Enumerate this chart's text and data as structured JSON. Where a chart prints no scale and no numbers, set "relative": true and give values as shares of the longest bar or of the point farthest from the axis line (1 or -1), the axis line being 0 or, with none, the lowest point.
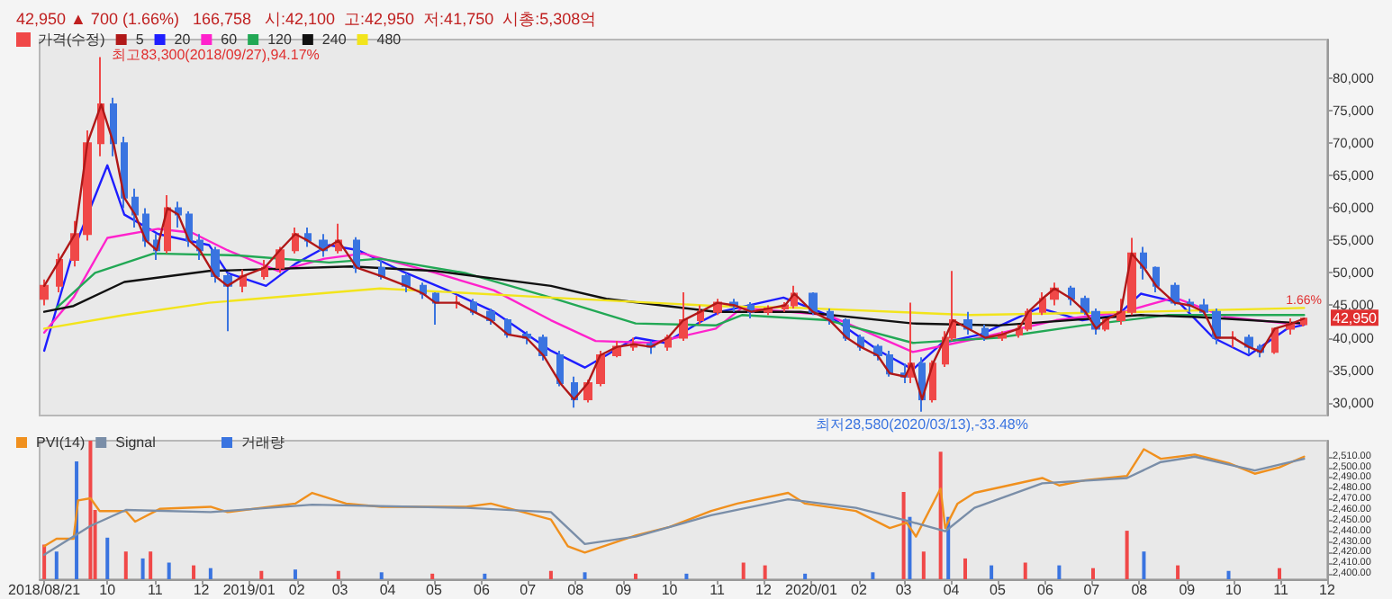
{
  "chart_data": [
    {
      "type": "candlestick",
      "title": "42,950 ▲ 700 (1.66%)   166,758   시:42,100  고:42,950  저:41,750  시총:5,308억",
      "series": [
        {
          "name": "가격(수정)",
          "color": "#f04848",
          "colors": [
            "#f04848",
            "#f04848",
            "#f04848",
            "#f04848",
            "#f04848",
            "#3a74e0",
            "#3a74e0",
            "#3a74e0",
            "#3a74e0",
            "#3a74e0",
            "#f04848",
            "#3a74e0",
            "#3a74e0",
            "#3a74e0",
            "#3a74e0",
            "#3a74e0",
            "#f04848",
            "#f04848",
            "#f04848",
            "#f04848",
            "#3a74e0",
            "#3a74e0",
            "#f04848",
            "#3a74e0",
            "#3a74e0",
            "#3a74e0",
            "#3a74e0",
            "#3a74e0",
            "#f04848",
            "#3a74e0",
            "#3a74e0",
            "#3a74e0",
            "#3a74e0",
            "#3a74e0",
            "#3a74e0",
            "#3a74e0",
            "#f04848",
            "#f04848",
            "#f04848",
            "#f04848",
            "#3a74e0",
            "#f04848",
            "#f04848",
            "#f04848",
            "#f04848",
            "#3a74e0",
            "#3a74e0",
            "#f04848",
            "#f04848",
            "#f04848",
            "#3a74e0",
            "#3a74e0",
            "#3a74e0",
            "#3a74e0",
            "#3a74e0",
            "#3a74e0",
            "#3a74e0",
            "#f04848",
            "#3a74e0",
            "#f04848",
            "#f04848",
            "#f04848",
            "#3a74e0",
            "#3a74e0",
            "#f04848",
            "#f04848",
            "#f04848",
            "#f04848",
            "#f04848",
            "#3a74e0",
            "#3a74e0",
            "#3a74e0",
            "#f04848",
            "#f04848",
            "#f04848",
            "#3a74e0",
            "#3a74e0",
            "#3a74e0",
            "#3a74e0",
            "#3a74e0",
            "#3a74e0",
            "#f04848",
            "#3a74e0",
            "#3a74e0",
            "#f04848",
            "#f04848",
            "#f04848"
          ],
          "x": [
            "2018-08-21",
            "2018-08-31",
            "2018-09-10",
            "2018-09-18",
            "2018-09-27",
            "2018-10-05",
            "2018-10-12",
            "2018-10-19",
            "2018-10-26",
            "2018-11-02",
            "2018-11-09",
            "2018-11-16",
            "2018-11-23",
            "2018-11-30",
            "2018-12-10",
            "2018-12-18",
            "2018-12-28",
            "2019-01-11",
            "2019-01-21",
            "2019-01-31",
            "2019-02-08",
            "2019-02-18",
            "2019-02-28",
            "2019-03-12",
            "2019-03-28",
            "2019-04-13",
            "2019-04-24",
            "2019-05-02",
            "2019-05-16",
            "2019-05-27",
            "2019-06-07",
            "2019-06-18",
            "2019-06-30",
            "2019-07-11",
            "2019-07-22",
            "2019-07-31",
            "2019-08-09",
            "2019-08-17",
            "2019-08-28",
            "2019-09-08",
            "2019-09-19",
            "2019-09-30",
            "2019-10-10",
            "2019-10-21",
            "2019-11-01",
            "2019-11-12",
            "2019-11-23",
            "2019-12-04",
            "2019-12-15",
            "2019-12-21",
            "2020-01-02",
            "2020-01-13",
            "2020-01-24",
            "2020-02-02",
            "2020-02-13",
            "2020-02-21",
            "2020-03-02",
            "2020-03-06",
            "2020-03-13",
            "2020-03-20",
            "2020-03-28",
            "2020-04-02",
            "2020-04-12",
            "2020-04-23",
            "2020-05-04",
            "2020-05-15",
            "2020-05-21",
            "2020-05-30",
            "2020-06-07",
            "2020-06-18",
            "2020-06-27",
            "2020-07-04",
            "2020-07-10",
            "2020-07-20",
            "2020-07-27",
            "2020-08-04",
            "2020-08-12",
            "2020-08-24",
            "2020-09-03",
            "2020-09-12",
            "2020-09-20",
            "2020-10-01",
            "2020-10-11",
            "2020-10-19",
            "2020-10-28",
            "2020-11-07",
            "2020-11-16"
          ],
          "ohlc": [
            [
              46000,
              49000,
              45000,
              48000
            ],
            [
              48000,
              53000,
              47000,
              52000
            ],
            [
              52000,
              58000,
              51000,
              56000
            ],
            [
              56000,
              72000,
              55000,
              70000
            ],
            [
              70000,
              83300,
              68000,
              76000
            ],
            [
              76000,
              77000,
              68000,
              70000
            ],
            [
              70000,
              71000,
              60000,
              61600
            ],
            [
              61600,
              63000,
              57000,
              59000
            ],
            [
              59000,
              60000,
              54000,
              55000
            ],
            [
              55000,
              56000,
              52000,
              53500
            ],
            [
              53500,
              62000,
              53000,
              60000
            ],
            [
              60000,
              61000,
              57000,
              59000
            ],
            [
              59000,
              59500,
              54000,
              55000
            ],
            [
              55000,
              56000,
              52000,
              53500
            ],
            [
              53500,
              54000,
              48500,
              49500
            ],
            [
              49500,
              50000,
              41000,
              48000
            ],
            [
              48000,
              50500,
              47000,
              49500
            ],
            [
              49500,
              52000,
              49000,
              50800
            ],
            [
              50800,
              54000,
              50000,
              53500
            ],
            [
              53500,
              57000,
              53000,
              56000
            ],
            [
              56000,
              57000,
              54000,
              55000
            ],
            [
              55000,
              56000,
              52500,
              53500
            ],
            [
              53500,
              57600,
              53000,
              55000
            ],
            [
              55000,
              55500,
              50000,
              50800
            ],
            [
              50800,
              52000,
              49000,
              49500
            ],
            [
              49500,
              50000,
              47000,
              48000
            ],
            [
              48000,
              48500,
              46000,
              46800
            ],
            [
              46800,
              47000,
              42000,
              45400
            ],
            [
              45400,
              46500,
              44500,
              45400
            ],
            [
              45400,
              46000,
              43500,
              44000
            ],
            [
              44000,
              44500,
              42000,
              42700
            ],
            [
              42700,
              43000,
              40000,
              40500
            ],
            [
              40500,
              41000,
              39000,
              40000
            ],
            [
              40000,
              40500,
              36500,
              37300
            ],
            [
              37300,
              38000,
              32500,
              33000
            ],
            [
              33000,
              34000,
              29200,
              30500
            ],
            [
              30500,
              33500,
              30000,
              33000
            ],
            [
              33000,
              38000,
              32500,
              37300
            ],
            [
              37300,
              39500,
              37000,
              38600
            ],
            [
              38600,
              40000,
              38000,
              39000
            ],
            [
              39000,
              39500,
              37500,
              38600
            ],
            [
              38600,
              40500,
              38000,
              40000
            ],
            [
              40000,
              47000,
              39500,
              42700
            ],
            [
              42700,
              45000,
              42000,
              44000
            ],
            [
              44000,
              46000,
              43500,
              45400
            ],
            [
              45400,
              46000,
              44000,
              45000
            ],
            [
              45000,
              45500,
              43000,
              44000
            ],
            [
              44000,
              45000,
              43500,
              44500
            ],
            [
              44500,
              45500,
              44000,
              45000
            ],
            [
              45000,
              48000,
              44500,
              46800
            ],
            [
              46800,
              47000,
              43500,
              44000
            ],
            [
              44000,
              44500,
              42000,
              42700
            ],
            [
              42700,
              43000,
              39500,
              40000
            ],
            [
              40000,
              40500,
              38000,
              38600
            ],
            [
              38600,
              39000,
              36500,
              37300
            ],
            [
              37300,
              38000,
              34000,
              34500
            ],
            [
              34500,
              36000,
              33000,
              34000
            ],
            [
              34000,
              45400,
              33000,
              36000
            ],
            [
              36000,
              37000,
              28580,
              30500
            ],
            [
              30500,
              36500,
              30000,
              36000
            ],
            [
              36000,
              41000,
              35500,
              40000
            ],
            [
              40000,
              50300,
              39500,
              42700
            ],
            [
              42700,
              44000,
              40500,
              41400
            ],
            [
              41400,
              42000,
              39500,
              40000
            ],
            [
              40000,
              41000,
              39500,
              40500
            ],
            [
              40500,
              42000,
              40000,
              41400
            ],
            [
              41400,
              44500,
              41000,
              44000
            ],
            [
              44000,
              47000,
              43500,
              46000
            ],
            [
              46000,
              48500,
              45000,
              47600
            ],
            [
              47600,
              48000,
              45000,
              46000
            ],
            [
              46000,
              46500,
              43500,
              44000
            ],
            [
              44000,
              44500,
              40500,
              41400
            ],
            [
              41400,
              43000,
              41000,
              42700
            ],
            [
              42700,
              46000,
              42000,
              44000
            ],
            [
              44000,
              55400,
              43500,
              53000
            ],
            [
              53000,
              54000,
              49000,
              50800
            ],
            [
              50800,
              51000,
              47000,
              48000
            ],
            [
              48000,
              48500,
              45000,
              45400
            ],
            [
              45400,
              46000,
              44000,
              45000
            ],
            [
              45000,
              46000,
              43500,
              44000
            ],
            [
              44000,
              44500,
              39000,
              40000
            ],
            [
              40000,
              41000,
              38500,
              40000
            ],
            [
              40000,
              40500,
              37500,
              38600
            ],
            [
              38600,
              39000,
              37000,
              37800
            ],
            [
              37800,
              41500,
              37500,
              41400
            ],
            [
              41400,
              43000,
              40500,
              42100
            ],
            [
              42100,
              42950,
              41750,
              42950
            ]
          ]
        },
        {
          "name": "5",
          "type": "line",
          "color": "#b01818",
          "x": [
            "2018-08-21",
            "2018-08-31",
            "2018-09-10",
            "2018-09-18",
            "2018-09-27",
            "2018-10-05",
            "2018-10-12",
            "2018-10-19",
            "2018-10-26",
            "2018-11-02",
            "2018-11-09",
            "2018-11-16",
            "2018-11-23",
            "2018-11-30",
            "2018-12-10",
            "2018-12-18",
            "2018-12-28",
            "2019-01-11",
            "2019-01-21",
            "2019-01-31",
            "2019-02-08",
            "2019-02-18",
            "2019-02-28",
            "2019-03-12",
            "2019-03-28",
            "2019-04-13",
            "2019-04-24",
            "2019-05-02",
            "2019-05-16",
            "2019-05-27",
            "2019-06-07",
            "2019-06-18",
            "2019-06-30",
            "2019-07-11",
            "2019-07-22",
            "2019-07-31",
            "2019-08-09",
            "2019-08-17",
            "2019-08-28",
            "2019-09-08",
            "2019-09-19",
            "2019-09-30",
            "2019-10-10",
            "2019-10-21",
            "2019-11-01",
            "2019-11-12",
            "2019-11-23",
            "2019-12-04",
            "2019-12-15",
            "2019-12-21",
            "2020-01-02",
            "2020-01-13",
            "2020-01-24",
            "2020-02-02",
            "2020-02-13",
            "2020-02-21",
            "2020-03-02",
            "2020-03-06",
            "2020-03-13",
            "2020-03-20",
            "2020-03-28",
            "2020-04-02",
            "2020-04-12",
            "2020-04-23",
            "2020-05-04",
            "2020-05-15",
            "2020-05-21",
            "2020-05-30",
            "2020-06-07",
            "2020-06-18",
            "2020-06-27",
            "2020-07-04",
            "2020-07-10",
            "2020-07-20",
            "2020-07-27",
            "2020-08-04",
            "2020-08-12",
            "2020-08-24",
            "2020-09-03",
            "2020-09-12",
            "2020-09-20",
            "2020-10-01",
            "2020-10-11",
            "2020-10-19",
            "2020-10-28",
            "2020-11-07",
            "2020-11-16"
          ],
          "values": [
            48000,
            52000,
            56000,
            70000,
            76000,
            70000,
            61600,
            59000,
            55000,
            53500,
            60000,
            59000,
            55000,
            53500,
            49500,
            48000,
            49500,
            50800,
            53500,
            56000,
            55000,
            53500,
            55000,
            50800,
            49500,
            48000,
            46800,
            45400,
            45400,
            44000,
            42700,
            40500,
            40000,
            37300,
            33000,
            30500,
            33000,
            37300,
            38600,
            39000,
            38600,
            40000,
            42700,
            44000,
            45400,
            45000,
            44000,
            44500,
            45000,
            46800,
            44000,
            42700,
            40000,
            38600,
            37300,
            34500,
            34000,
            36000,
            30500,
            36000,
            40000,
            42700,
            41400,
            40000,
            40500,
            41400,
            44000,
            46000,
            47600,
            46000,
            44000,
            41400,
            42700,
            44000,
            53000,
            50800,
            48000,
            45400,
            45000,
            44000,
            40000,
            40000,
            38600,
            37800,
            41400,
            42100,
            42950
          ]
        },
        {
          "name": "20",
          "type": "line",
          "color": "#1e1eff",
          "x": [
            "2018-08-21",
            "2018-09-09",
            "2018-10-01",
            "2018-10-12",
            "2018-11-03",
            "2018-12-06",
            "2018-12-18",
            "2019-01-12",
            "2019-01-31",
            "2019-02-22",
            "2019-03-13",
            "2019-04-10",
            "2019-05-10",
            "2019-06-09",
            "2019-07-16",
            "2019-08-07",
            "2019-08-21",
            "2019-09-09",
            "2019-09-28",
            "2019-10-23",
            "2019-11-03",
            "2019-12-14",
            "2020-01-12",
            "2020-02-14",
            "2020-03-07",
            "2020-03-26",
            "2020-04-20",
            "2020-05-28",
            "2020-06-25",
            "2020-07-18",
            "2020-08-02",
            "2020-08-27",
            "2020-09-18",
            "2020-10-11",
            "2020-11-05",
            "2020-11-16"
          ],
          "values": [
            38000,
            53500,
            66600,
            59000,
            56000,
            54300,
            50000,
            48000,
            51400,
            54300,
            53500,
            50300,
            47300,
            44000,
            38000,
            35400,
            37300,
            40000,
            39200,
            42700,
            44000,
            46200,
            43500,
            38000,
            35100,
            39200,
            40500,
            44600,
            42700,
            43500,
            46800,
            45400,
            40000,
            37300,
            41400,
            42000
          ]
        },
        {
          "name": "60",
          "type": "line",
          "color": "#ff22cc",
          "x": [
            "2018-08-21",
            "2018-09-09",
            "2018-10-01",
            "2018-11-03",
            "2018-11-25",
            "2018-12-18",
            "2019-01-20",
            "2019-02-19",
            "2019-03-16",
            "2019-05-02",
            "2019-06-09",
            "2019-07-16",
            "2019-08-14",
            "2019-09-20",
            "2019-10-31",
            "2019-11-17",
            "2020-01-12",
            "2020-03-07",
            "2020-04-20",
            "2020-06-08",
            "2020-07-22",
            "2020-08-24",
            "2020-09-26",
            "2020-11-05",
            "2020-11-16"
          ],
          "values": [
            40800,
            46200,
            55400,
            56800,
            56200,
            53500,
            50300,
            52200,
            53000,
            50000,
            47300,
            42700,
            39500,
            39200,
            41400,
            44600,
            43500,
            37800,
            40000,
            42700,
            44000,
            46200,
            43200,
            42200,
            42200
          ]
        },
        {
          "name": "120",
          "type": "line",
          "color": "#22a855",
          "x": [
            "2018-08-29",
            "2018-09-23",
            "2018-10-31",
            "2018-12-25",
            "2019-02-22",
            "2019-03-27",
            "2019-05-21",
            "2019-07-16",
            "2019-09-09",
            "2019-10-31",
            "2019-11-17",
            "2020-01-12",
            "2020-03-07",
            "2020-05-01",
            "2020-06-25",
            "2020-08-20",
            "2020-11-16"
          ],
          "values": [
            44600,
            50000,
            53000,
            52700,
            51600,
            52200,
            50000,
            46200,
            42200,
            41900,
            43500,
            42700,
            39200,
            40000,
            41900,
            43500,
            43500
          ]
        },
        {
          "name": "240",
          "type": "line",
          "color": "#111111",
          "x": [
            "2018-08-21",
            "2018-09-09",
            "2018-10-12",
            "2018-12-06",
            "2019-03-08",
            "2019-05-02",
            "2019-07-16",
            "2019-08-21",
            "2019-10-31",
            "2019-12-25",
            "2020-03-07",
            "2020-05-01",
            "2020-08-02",
            "2020-09-08",
            "2020-11-16"
          ],
          "values": [
            44000,
            44900,
            48600,
            50300,
            51000,
            50300,
            48000,
            46000,
            44000,
            44000,
            42200,
            41900,
            43500,
            43200,
            42200
          ]
        },
        {
          "name": "480",
          "type": "line",
          "color": "#f2e41c",
          "x": [
            "2018-08-21",
            "2018-10-12",
            "2018-12-06",
            "2019-03-27",
            "2019-07-16",
            "2019-10-31",
            "2019-12-25",
            "2020-04-13",
            "2020-08-02",
            "2020-11-16"
          ],
          "values": [
            41400,
            43500,
            45400,
            47600,
            46200,
            44900,
            44600,
            43500,
            44000,
            44600
          ]
        }
      ],
      "xlim": [
        "2018-08-18",
        "2020-12-01"
      ],
      "ylim": [
        28000,
        86000
      ],
      "yticks": [
        {
          "value": 30000,
          "label": "30,000"
        },
        {
          "value": 35000,
          "label": "35,000"
        },
        {
          "value": 40000,
          "label": "40,000"
        },
        {
          "value": 45000,
          "label": "45,000"
        },
        {
          "value": 50000,
          "label": "50,000"
        },
        {
          "value": 55000,
          "label": "55,000"
        },
        {
          "value": 60000,
          "label": "60,000"
        },
        {
          "value": 65000,
          "label": "65,000"
        },
        {
          "value": 70000,
          "label": "70,000"
        },
        {
          "value": 75000,
          "label": "75,000"
        },
        {
          "value": 80000,
          "label": "80,000"
        }
      ],
      "tick_labels": "y",
      "legend": "top left",
      "marker": "none",
      "line_style": "solid",
      "annotations": [
        {
          "text": "최고83,300(2018/09/27),94.17%",
          "x": "2018-09-27",
          "y": 83300
        },
        {
          "text": "최저28,580(2020/03/13),-33.48%",
          "x": "2020-03-13",
          "y": 28580
        },
        {
          "text": "42,950",
          "y": 42950
        },
        "1.66%"
      ]
    },
    {
      "type": "line",
      "series": [
        {
          "name": "PVI(14)",
          "color": "#f0901e",
          "x": [
            "2018-08-21",
            "2018-08-29",
            "2018-09-09",
            "2018-09-12",
            "2018-09-20",
            "2018-09-26",
            "2018-10-13",
            "2018-10-19",
            "2018-11-04",
            "2018-12-07",
            "2018-12-18",
            "2019-01-31",
            "2019-02-11",
            "2019-03-05",
            "2019-03-28",
            "2019-05-22",
            "2019-06-07",
            "2019-07-16",
            "2019-07-27",
            "2019-08-07",
            "2019-09-09",
            "2019-10-01",
            "2019-10-28",
            "2019-11-14",
            "2019-12-17",
            "2019-12-28",
            "2020-01-30",
            "2020-02-21",
            "2020-03-03",
            "2020-03-09",
            "2020-03-25",
            "2020-03-28",
            "2020-04-05",
            "2020-04-16",
            "2020-05-30",
            "2020-06-10",
            "2020-06-27",
            "2020-07-24",
            "2020-08-04",
            "2020-08-15",
            "2020-09-06",
            "2020-09-28",
            "2020-10-15",
            "2020-10-31",
            "2020-11-16"
          ],
          "values": [
            2426,
            2433,
            2433,
            2469,
            2471,
            2459,
            2459,
            2449,
            2461,
            2463,
            2458,
            2466,
            2476,
            2466,
            2463,
            2463,
            2466,
            2451,
            2426,
            2420,
            2436,
            2444,
            2459,
            2466,
            2476,
            2466,
            2459,
            2443,
            2448,
            2435,
            2480,
            2443,
            2466,
            2476,
            2490,
            2483,
            2488,
            2492,
            2517,
            2508,
            2512,
            2504,
            2494,
            2500,
            2510
          ]
        },
        {
          "name": "Signal",
          "color": "#7a8ea8",
          "x": [
            "2018-08-21",
            "2018-09-20",
            "2018-10-13",
            "2018-12-07",
            "2019-02-11",
            "2019-05-22",
            "2019-07-16",
            "2019-08-07",
            "2019-09-09",
            "2019-10-28",
            "2019-12-17",
            "2020-01-30",
            "2020-03-03",
            "2020-03-28",
            "2020-04-16",
            "2020-05-30",
            "2020-07-24",
            "2020-08-15",
            "2020-09-06",
            "2020-10-15",
            "2020-11-16"
          ],
          "values": [
            2418,
            2445,
            2460,
            2458,
            2465,
            2462,
            2458,
            2428,
            2435,
            2455,
            2470,
            2462,
            2450,
            2440,
            2462,
            2485,
            2490,
            2505,
            2510,
            2497,
            2508
          ]
        }
      ],
      "xlim": [
        "2018-08-18",
        "2020-12-01"
      ],
      "ylim": [
        2395,
        2525
      ],
      "xticks": [
        {
          "value": "2018-08-21",
          "label": "2018/08/21"
        },
        {
          "value": "2018-10-01",
          "label": "10"
        },
        {
          "value": "2018-11-01",
          "label": "11"
        },
        {
          "value": "2018-12-01",
          "label": "12"
        },
        {
          "value": "2019-01-01",
          "label": "2019/01"
        },
        {
          "value": "2019-02-01",
          "label": "02"
        },
        {
          "value": "2019-03-01",
          "label": "03"
        },
        {
          "value": "2019-04-01",
          "label": "04"
        },
        {
          "value": "2019-05-01",
          "label": "05"
        },
        {
          "value": "2019-06-01",
          "label": "06"
        },
        {
          "value": "2019-07-01",
          "label": "07"
        },
        {
          "value": "2019-08-01",
          "label": "08"
        },
        {
          "value": "2019-09-01",
          "label": "09"
        },
        {
          "value": "2019-10-01",
          "label": "10"
        },
        {
          "value": "2019-11-01",
          "label": "11"
        },
        {
          "value": "2019-12-01",
          "label": "12"
        },
        {
          "value": "2020-01-01",
          "label": "2020/01"
        },
        {
          "value": "2020-02-01",
          "label": "02"
        },
        {
          "value": "2020-03-01",
          "label": "03"
        },
        {
          "value": "2020-04-01",
          "label": "04"
        },
        {
          "value": "2020-05-01",
          "label": "05"
        },
        {
          "value": "2020-06-01",
          "label": "06"
        },
        {
          "value": "2020-07-01",
          "label": "07"
        },
        {
          "value": "2020-08-01",
          "label": "08"
        },
        {
          "value": "2020-09-01",
          "label": "09"
        },
        {
          "value": "2020-10-01",
          "label": "10"
        },
        {
          "value": "2020-11-01",
          "label": "11"
        },
        {
          "value": "2020-12-01",
          "label": "12"
        }
      ],
      "yticks": [
        {
          "value": 2400,
          "label": "2,400.00"
        },
        {
          "value": 2410,
          "label": "2,410.00"
        },
        {
          "value": 2420,
          "label": "2,420.00"
        },
        {
          "value": 2430,
          "label": "2,430.00"
        },
        {
          "value": 2440,
          "label": "2,440.00"
        },
        {
          "value": 2450,
          "label": "2,450.00"
        },
        {
          "value": 2460,
          "label": "2,460.00"
        },
        {
          "value": 2470,
          "label": "2,470.00"
        },
        {
          "value": 2480,
          "label": "2,480.00"
        },
        {
          "value": 2490,
          "label": "2,490.00"
        },
        {
          "value": 2500,
          "label": "2,500.00"
        },
        {
          "value": 2510,
          "label": "2,510.00"
        }
      ],
      "legend": "top left",
      "marker": "none",
      "line_style": "solid"
    },
    {
      "type": "bar",
      "relative": true,
      "series": [
        {
          "name": "거래량",
          "color": "#3a74e0",
          "x": [
            "2018-08-21",
            "2018-08-29",
            "2018-09-11",
            "2018-09-20",
            "2018-09-23",
            "2018-10-01",
            "2018-10-13",
            "2018-10-24",
            "2018-10-29",
            "2018-11-10",
            "2018-11-26",
            "2018-12-07",
            "2019-01-09",
            "2019-01-31",
            "2019-02-28",
            "2019-03-28",
            "2019-04-30",
            "2019-06-03",
            "2019-07-16",
            "2019-08-07",
            "2019-09-09",
            "2019-10-12",
            "2019-11-18",
            "2019-12-02",
            "2019-12-28",
            "2020-02-10",
            "2020-03-01",
            "2020-03-05",
            "2020-03-14",
            "2020-03-25",
            "2020-03-30",
            "2020-04-10",
            "2020-04-27",
            "2020-05-19",
            "2020-06-10",
            "2020-07-02",
            "2020-07-24",
            "2020-08-04",
            "2020-08-26",
            "2020-09-28",
            "2020-10-31"
          ],
          "values": [
            0.25,
            0.2,
            0.85,
            1,
            0.5,
            0.3,
            0.2,
            0.15,
            0.2,
            0.12,
            0.1,
            0.08,
            0.06,
            0.07,
            0.06,
            0.05,
            0.04,
            0.04,
            0.06,
            0.05,
            0.04,
            0.04,
            0.12,
            0.1,
            0.04,
            0.05,
            0.63,
            0.45,
            0.2,
            0.92,
            0.45,
            0.15,
            0.1,
            0.12,
            0.1,
            0.08,
            0.35,
            0.2,
            0.1,
            0.06,
            0.08
          ],
          "colors": [
            "#f04848",
            "#3a74e0",
            "#3a74e0",
            "#f04848",
            "#f04848",
            "#3a74e0",
            "#f04848",
            "#3a74e0",
            "#f04848",
            "#3a74e0",
            "#f04848",
            "#3a74e0",
            "#f04848",
            "#3a74e0",
            "#f04848",
            "#3a74e0",
            "#f04848",
            "#3a74e0",
            "#f04848",
            "#3a74e0",
            "#f04848",
            "#3a74e0",
            "#f04848",
            "#f04848",
            "#3a74e0",
            "#3a74e0",
            "#f04848",
            "#3a74e0",
            "#f04848",
            "#f04848",
            "#3a74e0",
            "#f04848",
            "#3a74e0",
            "#f04848",
            "#3a74e0",
            "#f04848",
            "#f04848",
            "#3a74e0",
            "#f04848",
            "#3a74e0",
            "#f04848"
          ]
        }
      ],
      "xlim": [
        "2018-08-18",
        "2020-12-01"
      ],
      "tick_labels": false,
      "legend": "top left"
    }
  ]
}
